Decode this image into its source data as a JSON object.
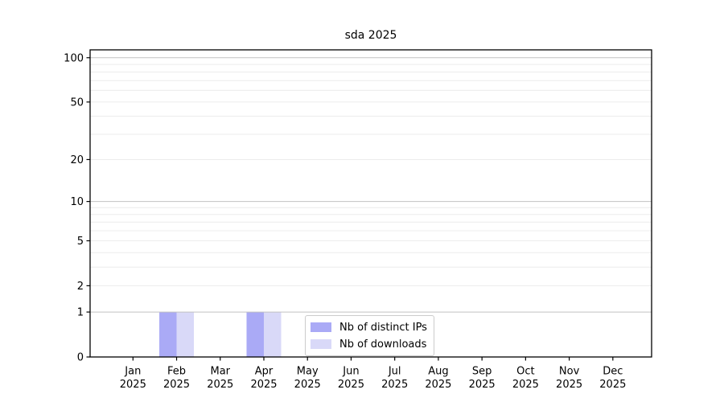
{
  "chart_data": {
    "type": "bar",
    "title": "sda 2025",
    "categories": [
      {
        "month": "Jan",
        "year": "2025"
      },
      {
        "month": "Feb",
        "year": "2025"
      },
      {
        "month": "Mar",
        "year": "2025"
      },
      {
        "month": "Apr",
        "year": "2025"
      },
      {
        "month": "May",
        "year": "2025"
      },
      {
        "month": "Jun",
        "year": "2025"
      },
      {
        "month": "Jul",
        "year": "2025"
      },
      {
        "month": "Aug",
        "year": "2025"
      },
      {
        "month": "Sep",
        "year": "2025"
      },
      {
        "month": "Oct",
        "year": "2025"
      },
      {
        "month": "Nov",
        "year": "2025"
      },
      {
        "month": "Dec",
        "year": "2025"
      }
    ],
    "series": [
      {
        "name": "Nb of distinct IPs",
        "color": "#aaaaf6",
        "values": [
          0,
          1,
          0,
          1,
          0,
          0,
          0,
          0,
          0,
          0,
          0,
          0
        ]
      },
      {
        "name": "Nb of downloads",
        "color": "#d9d9f8",
        "values": [
          0,
          1,
          0,
          1,
          0,
          0,
          0,
          0,
          0,
          0,
          0,
          0
        ]
      }
    ],
    "xlabel": "",
    "ylabel": "",
    "yscale": "log1p",
    "ylim": [
      0,
      113
    ],
    "yticks": [
      0,
      1,
      2,
      5,
      10,
      20,
      50,
      100
    ],
    "grid": {
      "minor_values": [
        2,
        3,
        4,
        5,
        6,
        7,
        8,
        9,
        20,
        30,
        40,
        50,
        60,
        70,
        80,
        90
      ],
      "major_values": [
        1,
        10,
        100
      ],
      "minor_color": "#ececec",
      "major_color": "#c2c2c2"
    },
    "axis_color": "#000000",
    "tick_label_color": "#000000",
    "legend_position": "lower center"
  },
  "legend": {
    "items": [
      {
        "label": "Nb of distinct IPs",
        "color": "#aaaaf6"
      },
      {
        "label": "Nb of downloads",
        "color": "#d9d9f8"
      }
    ]
  }
}
